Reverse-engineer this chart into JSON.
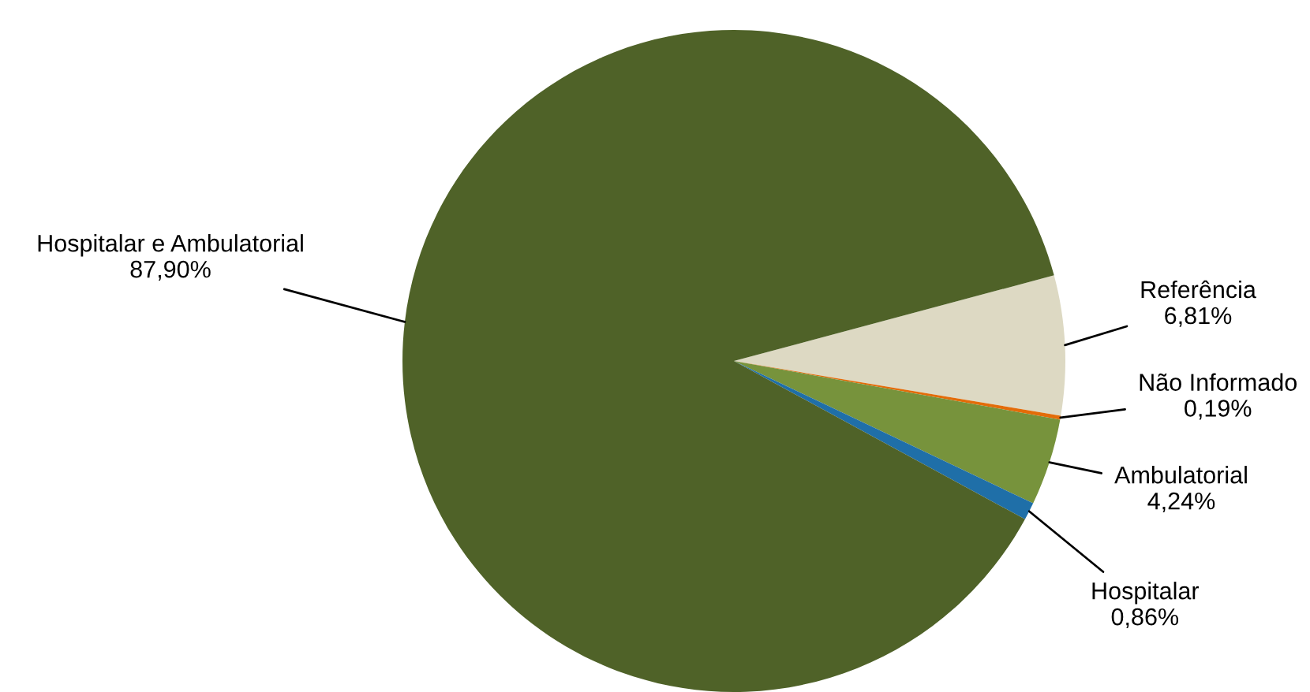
{
  "chart_data": {
    "type": "pie",
    "categories": [
      "Referência",
      "Não Informado",
      "Ambulatorial",
      "Hospitalar",
      "Hospitalar e Ambulatorial"
    ],
    "values": [
      6.81,
      0.19,
      4.24,
      0.86,
      87.9
    ],
    "colors": [
      "#ddd9c3",
      "#e36c09",
      "#77933c",
      "#1f6fa8",
      "#4f6228"
    ],
    "value_labels": [
      "6,81%",
      "0,19%",
      "4,24%",
      "0,86%",
      "87,90%"
    ],
    "legend": false
  }
}
